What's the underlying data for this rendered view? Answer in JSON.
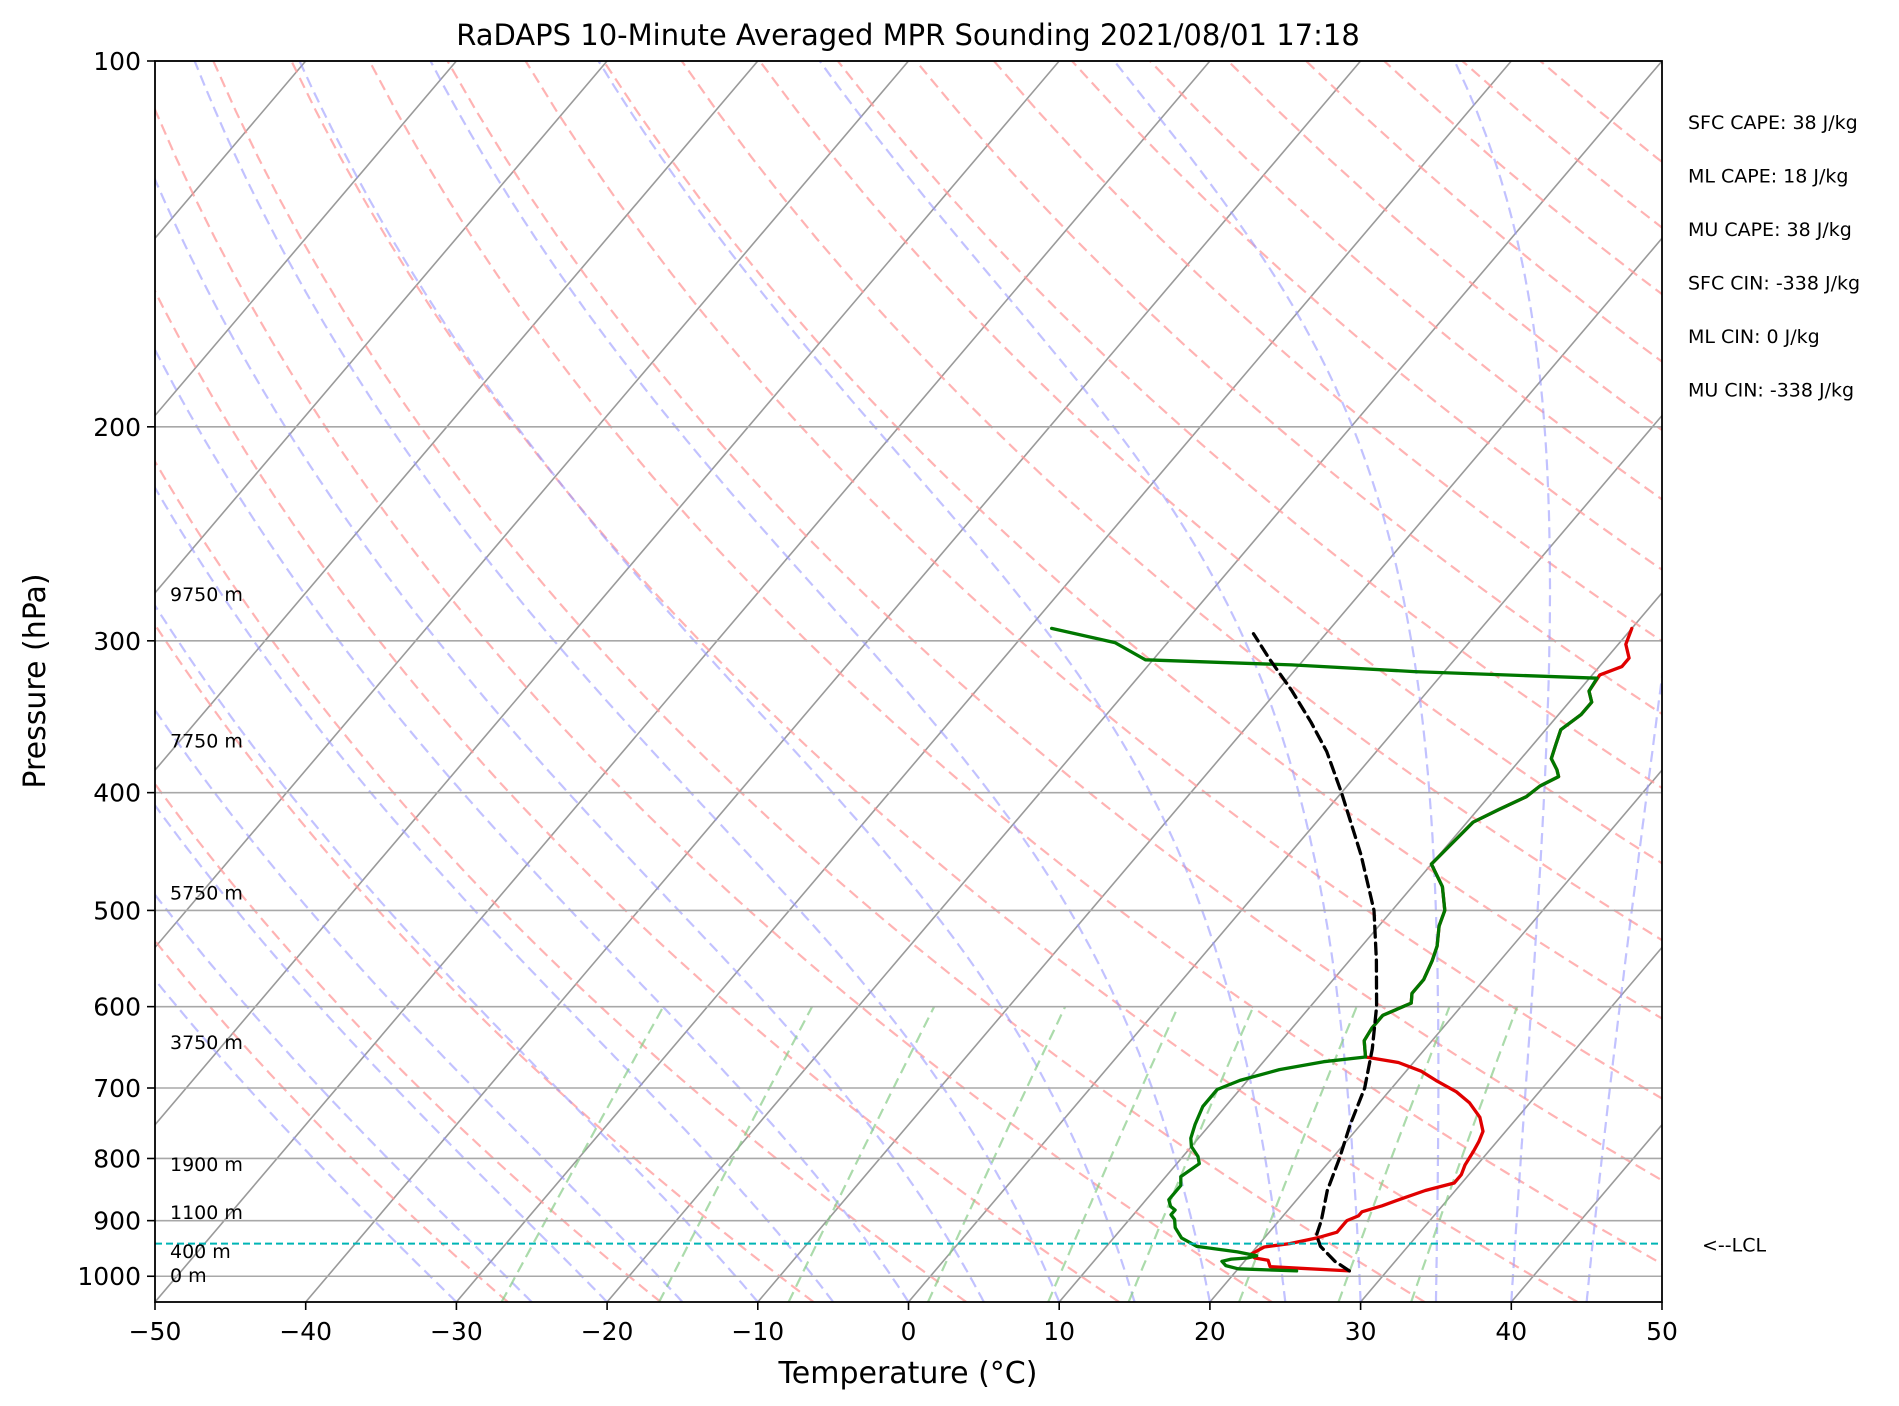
{
  "chart_data": {
    "type": "line",
    "title": "RaDAPS 10-Minute Averaged MPR Sounding 2021/08/01 17:18",
    "xlabel": "Temperature (°C)",
    "ylabel": "Pressure (hPa)",
    "xlim": [
      -50,
      50
    ],
    "ylim": [
      1050,
      100
    ],
    "y_scale": "log",
    "grid": true,
    "x_ticks": [
      "−50",
      "−40",
      "−30",
      "−20",
      "−10",
      "0",
      "10",
      "20",
      "30",
      "40",
      "50"
    ],
    "y_ticks": [
      "100",
      "200",
      "300",
      "400",
      "500",
      "600",
      "700",
      "800",
      "900",
      "1000"
    ],
    "series": [
      {
        "color": "#e00000",
        "style": "solid",
        "points": [
          [
            27.5,
            990
          ],
          [
            22.0,
            982
          ],
          [
            21.5,
            970
          ],
          [
            20.5,
            966
          ],
          [
            20.0,
            960
          ],
          [
            20.5,
            946
          ],
          [
            22.0,
            940
          ],
          [
            23.5,
            930
          ],
          [
            24.5,
            920
          ],
          [
            24.5,
            900
          ],
          [
            25.0,
            892
          ],
          [
            25.0,
            885
          ],
          [
            26.0,
            875
          ],
          [
            27.0,
            862
          ],
          [
            28.0,
            850
          ],
          [
            29.5,
            838
          ],
          [
            29.5,
            825
          ],
          [
            29.2,
            810
          ],
          [
            29.0,
            790
          ],
          [
            28.8,
            775
          ],
          [
            28.5,
            760
          ],
          [
            27.5,
            740
          ],
          [
            26.0,
            720
          ],
          [
            24.5,
            705
          ],
          [
            22.5,
            690
          ],
          [
            21.0,
            678
          ],
          [
            19.0,
            667
          ],
          [
            16.5,
            660
          ],
          [
            15.5,
            640
          ],
          [
            15.3,
            625
          ],
          [
            15.3,
            610
          ],
          [
            16.5,
            596
          ],
          [
            16.0,
            585
          ],
          [
            16.0,
            570
          ],
          [
            15.5,
            550
          ],
          [
            15.0,
            535
          ],
          [
            14.0,
            515
          ],
          [
            13.5,
            500
          ],
          [
            12.0,
            478
          ],
          [
            10.0,
            458
          ],
          [
            10.2,
            440
          ],
          [
            10.4,
            423
          ],
          [
            11.4,
            413
          ],
          [
            12.5,
            403
          ],
          [
            12.8,
            395
          ],
          [
            13.5,
            388
          ],
          [
            13.0,
            383
          ],
          [
            12.0,
            375
          ],
          [
            11.5,
            365
          ],
          [
            11.0,
            355
          ],
          [
            11.5,
            345
          ],
          [
            11.5,
            337
          ],
          [
            10.7,
            330
          ],
          [
            10.5,
            320
          ],
          [
            11.5,
            315
          ],
          [
            11.5,
            310
          ],
          [
            10.5,
            302
          ],
          [
            10.0,
            293
          ]
        ]
      },
      {
        "color": "#007700",
        "style": "solid",
        "points": [
          [
            24.0,
            990
          ],
          [
            20.0,
            986
          ],
          [
            19.0,
            980
          ],
          [
            18.5,
            972
          ],
          [
            19.0,
            968
          ],
          [
            20.0,
            966
          ],
          [
            20.5,
            962
          ],
          [
            19.0,
            955
          ],
          [
            16.0,
            945
          ],
          [
            14.5,
            930
          ],
          [
            13.5,
            912
          ],
          [
            13.0,
            898
          ],
          [
            12.5,
            890
          ],
          [
            12.5,
            882
          ],
          [
            12.0,
            876
          ],
          [
            11.5,
            865
          ],
          [
            11.5,
            855
          ],
          [
            11.5,
            842
          ],
          [
            11.0,
            828
          ],
          [
            11.5,
            808
          ],
          [
            11.0,
            797
          ],
          [
            10.0,
            782
          ],
          [
            9.5,
            770
          ],
          [
            9.0,
            750
          ],
          [
            8.5,
            725
          ],
          [
            8.5,
            702
          ],
          [
            9.5,
            690
          ],
          [
            11.5,
            676
          ],
          [
            14.0,
            666
          ],
          [
            16.5,
            660
          ],
          [
            15.5,
            640
          ],
          [
            15.3,
            625
          ],
          [
            15.3,
            610
          ],
          [
            16.5,
            596
          ],
          [
            16.0,
            585
          ],
          [
            16.0,
            570
          ],
          [
            15.5,
            550
          ],
          [
            15.0,
            535
          ],
          [
            14.0,
            515
          ],
          [
            13.5,
            500
          ],
          [
            12.0,
            478
          ],
          [
            10.0,
            458
          ],
          [
            10.2,
            440
          ],
          [
            10.4,
            423
          ],
          [
            11.4,
            413
          ],
          [
            12.5,
            403
          ],
          [
            12.8,
            395
          ],
          [
            13.5,
            388
          ],
          [
            13.0,
            383
          ],
          [
            12.0,
            375
          ],
          [
            11.5,
            365
          ],
          [
            11.0,
            355
          ],
          [
            11.5,
            345
          ],
          [
            11.5,
            337
          ],
          [
            10.7,
            330
          ],
          [
            10.5,
            322
          ],
          [
            -2.0,
            318
          ],
          [
            -10.5,
            314
          ],
          [
            -20.5,
            311
          ],
          [
            -23.5,
            301
          ],
          [
            -28.5,
            293
          ]
        ]
      },
      {
        "color": "#000000",
        "style": "dashed",
        "points": [
          [
            27.5,
            990
          ],
          [
            26.0,
            972
          ],
          [
            24.2,
            945
          ],
          [
            23.3,
            925
          ],
          [
            22.8,
            900
          ],
          [
            21.5,
            850
          ],
          [
            20.5,
            800
          ],
          [
            19.3,
            750
          ],
          [
            18.2,
            700
          ],
          [
            16.5,
            650
          ],
          [
            14.4,
            600
          ],
          [
            11.8,
            550
          ],
          [
            8.8,
            500
          ],
          [
            4.8,
            450
          ],
          [
            0.0,
            400
          ],
          [
            -3.3,
            370
          ],
          [
            -6.0,
            350
          ],
          [
            -9.0,
            330
          ],
          [
            -12.4,
            310
          ],
          [
            -14.8,
            296
          ]
        ]
      }
    ],
    "lcl_pressure": 940,
    "lcl_label": "<--LCL",
    "height_labels": [
      {
        "text": "0 m",
        "p": 1000
      },
      {
        "text": "400 m",
        "p": 955
      },
      {
        "text": "1100 m",
        "p": 887
      },
      {
        "text": "1900 m",
        "p": 810
      },
      {
        "text": "3750 m",
        "p": 643
      },
      {
        "text": "5750 m",
        "p": 484
      },
      {
        "text": "7750 m",
        "p": 363
      },
      {
        "text": "9750 m",
        "p": 275
      }
    ],
    "annotations": [
      "SFC CAPE: 38 J/kg",
      "ML CAPE: 18 J/kg",
      "MU CAPE: 38 J/kg",
      "SFC CIN: -338 J/kg",
      "ML CIN: 0 J/kg",
      "MU CIN: -338 J/kg"
    ],
    "skew": 35,
    "background_lines": {
      "isotherm_color": "#9a9a9a",
      "dry_adiabat_color": "#ff9999",
      "moist_adiabat_color": "#9999ff",
      "mixing_ratio_color": "#88cc88",
      "lcl_color": "#00b5b5"
    }
  }
}
